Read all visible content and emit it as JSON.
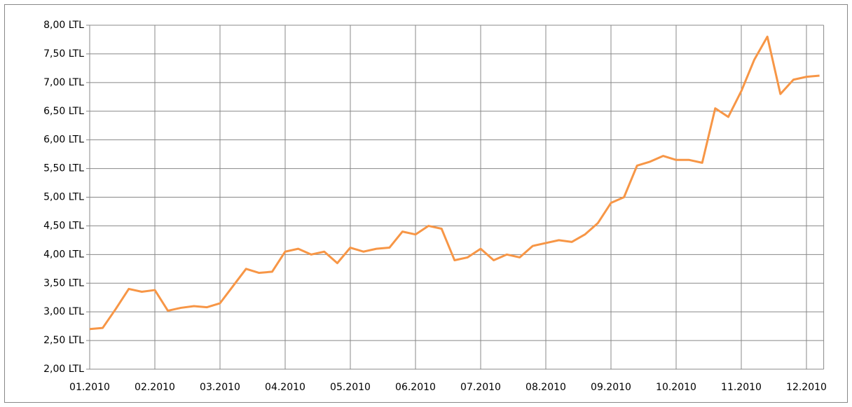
{
  "chart_data": {
    "type": "line",
    "categories": [
      "01.2010",
      null,
      null,
      null,
      null,
      "02.2010",
      null,
      null,
      null,
      null,
      "03.2010",
      null,
      null,
      null,
      null,
      "04.2010",
      null,
      null,
      null,
      null,
      "05.2010",
      null,
      null,
      null,
      null,
      "06.2010",
      null,
      null,
      null,
      null,
      "07.2010",
      null,
      null,
      null,
      null,
      "08.2010",
      null,
      null,
      null,
      null,
      "09.2010",
      null,
      null,
      null,
      null,
      "10.2010",
      null,
      null,
      null,
      null,
      "11.2010",
      null,
      null,
      null,
      null,
      "12.2010",
      null
    ],
    "series": [
      {
        "color": "#f79646",
        "values": [
          2.7,
          2.72,
          3.05,
          3.4,
          3.35,
          3.38,
          3.02,
          3.07,
          3.1,
          3.08,
          3.15,
          3.45,
          3.75,
          3.68,
          3.7,
          4.05,
          4.1,
          4.0,
          4.05,
          3.85,
          4.12,
          4.05,
          4.1,
          4.12,
          4.4,
          4.35,
          4.5,
          4.45,
          3.9,
          3.95,
          4.1,
          3.9,
          4.0,
          3.95,
          4.15,
          4.2,
          4.25,
          4.22,
          4.35,
          4.55,
          4.9,
          5.0,
          5.55,
          5.62,
          5.72,
          5.65,
          5.65,
          5.6,
          6.55,
          6.4,
          6.85,
          7.4,
          7.8,
          6.8,
          7.05,
          7.1,
          7.12
        ]
      }
    ],
    "ylim": [
      2,
      8
    ],
    "yticks": [
      {
        "value": 2,
        "label": "2,00 LTL"
      },
      {
        "value": 2.5,
        "label": "2,50 LTL"
      },
      {
        "value": 3,
        "label": "3,00 LTL"
      },
      {
        "value": 3.5,
        "label": "3,50 LTL"
      },
      {
        "value": 4,
        "label": "4,00 LTL"
      },
      {
        "value": 4.5,
        "label": "4,50 LTL"
      },
      {
        "value": 5,
        "label": "5,00 LTL"
      },
      {
        "value": 5.5,
        "label": "5,50 LTL"
      },
      {
        "value": 6,
        "label": "6,00 LTL"
      },
      {
        "value": 6.5,
        "label": "6,50 LTL"
      },
      {
        "value": 7,
        "label": "7,00 LTL"
      },
      {
        "value": 7.5,
        "label": "7,50 LTL"
      },
      {
        "value": 8,
        "label": "8,00 LTL"
      }
    ],
    "grid": true
  }
}
